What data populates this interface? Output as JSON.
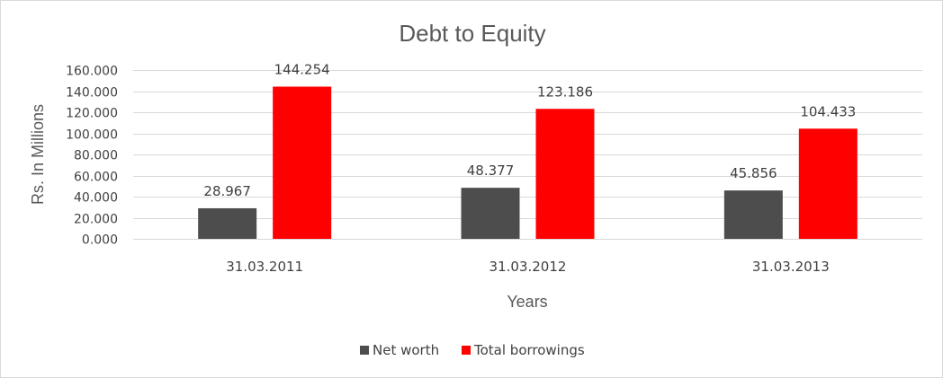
{
  "chart_data": {
    "type": "bar",
    "title": "Debt to Equity",
    "xlabel": "Years",
    "ylabel": "Rs. In Millions",
    "categories": [
      "31.03.2011",
      "31.03.2012",
      "31.03.2013"
    ],
    "series": [
      {
        "name": "Net worth",
        "color": "#4d4d4d",
        "values": [
          28.967,
          48.377,
          45.856
        ]
      },
      {
        "name": "Total borrowings",
        "color": "#ff0000",
        "values": [
          144.254,
          123.186,
          104.433
        ]
      }
    ],
    "ylim": [
      0,
      160
    ],
    "yticks": [
      0,
      20,
      40,
      60,
      80,
      100,
      120,
      140,
      160
    ],
    "ytick_labels": [
      "0.000",
      "20.000",
      "40.000",
      "60.000",
      "80.000",
      "100.000",
      "120.000",
      "140.000",
      "160.000"
    ],
    "data_labels": [
      [
        "28.967",
        "48.377",
        "45.856"
      ],
      [
        "144.254",
        "123.186",
        "104.433"
      ]
    ],
    "grid": true,
    "legend_position": "bottom"
  }
}
